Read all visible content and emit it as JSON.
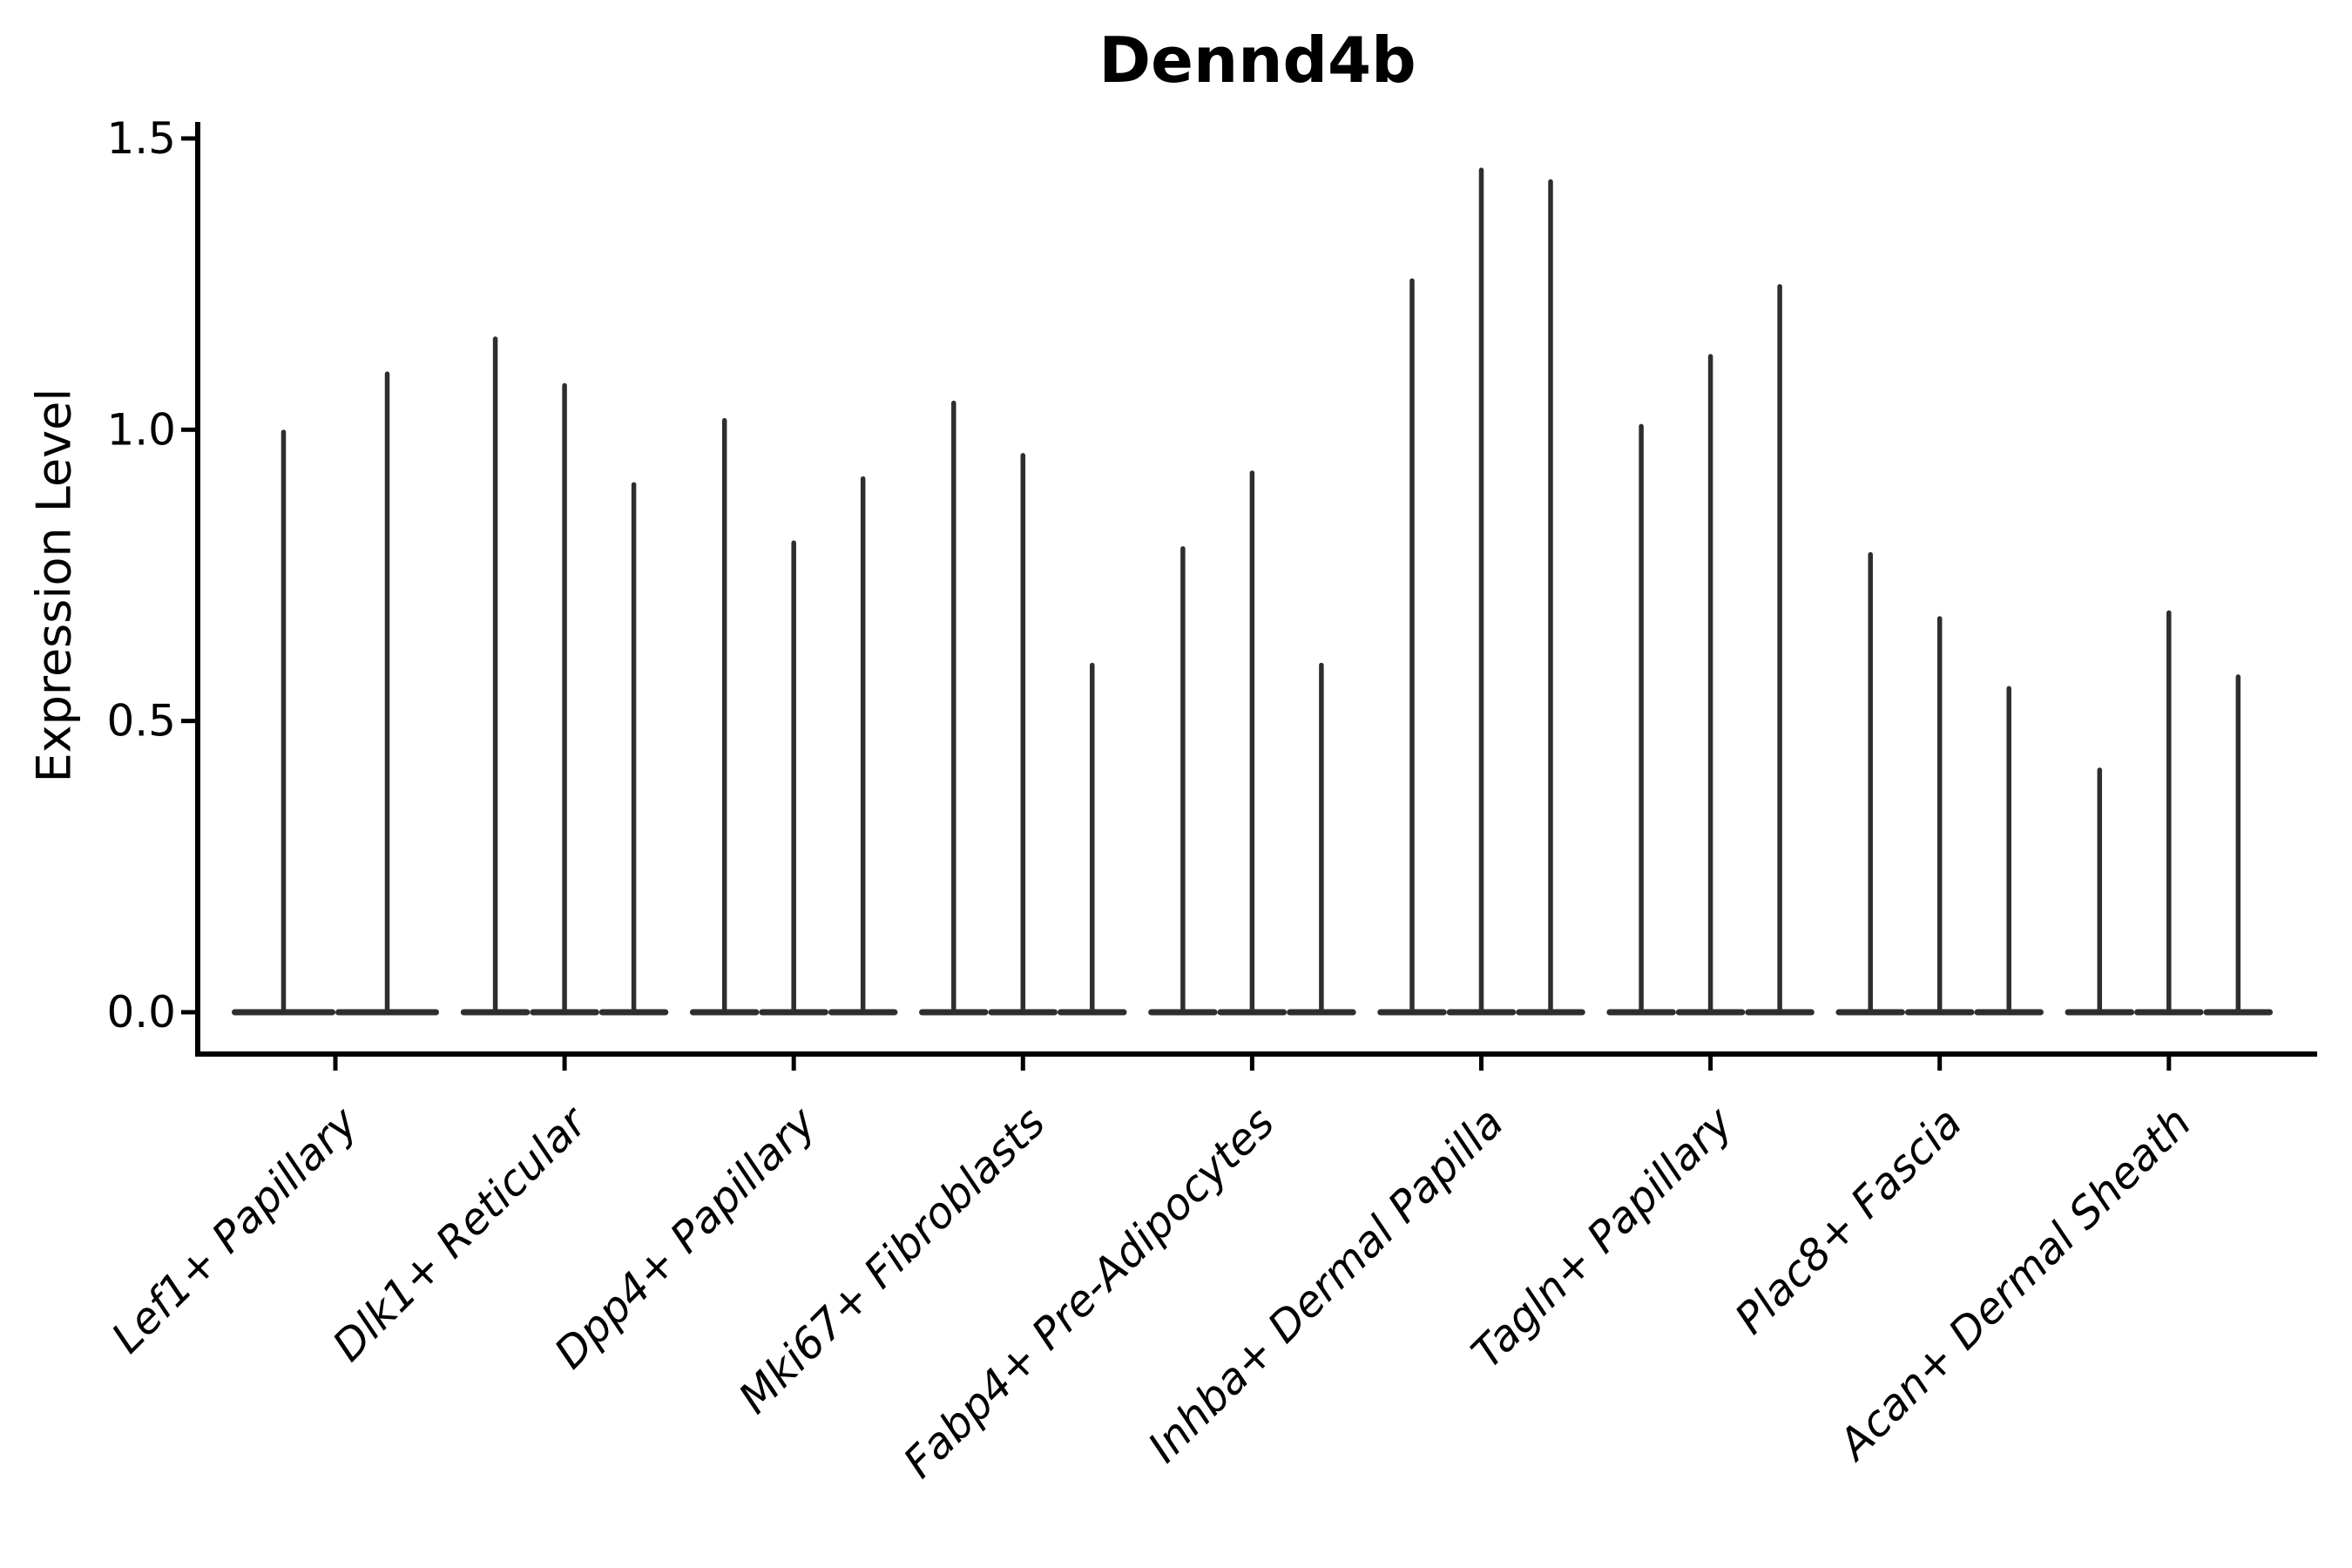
{
  "title": "Dennd4b",
  "axes": {
    "ylabel": "Expression Level",
    "ytick_labels": [
      "0.0",
      "0.5",
      "1.0",
      "1.5"
    ],
    "ytick_values": [
      0.0,
      0.5,
      1.0,
      1.5
    ],
    "ylim": [
      0,
      1.5
    ]
  },
  "colors": {
    "violin": "#2e2e2e",
    "axis": "#000000",
    "text": "#000000",
    "background": "#ffffff"
  },
  "chart_data": {
    "type": "violin",
    "title": "Dennd4b",
    "ylabel": "Expression Level",
    "yticks": [
      0.0,
      0.5,
      1.0,
      1.5
    ],
    "ylim": [
      0,
      1.5
    ],
    "grid": false,
    "legend": "none",
    "description": "Spike-shaped violins (mass concentrated at 0 with thin spike to max expression); each cell-type group contains 2-3 violins",
    "categories": [
      "Lef1+ Papillary",
      "Dlk1+ Reticular",
      "Dpp4+ Papillary",
      "Mki67+ Fibroblasts",
      "Fabp4+ Pre-Adipocytes",
      "Inhba+ Dermal Papilla",
      "Tagln+ Papillary",
      "Plac8+ Fascia",
      "Acan+ Dermal Sheath"
    ],
    "groups": [
      {
        "category": "Lef1+ Papillary",
        "violin_max": [
          1.0,
          1.1
        ]
      },
      {
        "category": "Dlk1+ Reticular",
        "violin_max": [
          1.16,
          1.08,
          0.91
        ]
      },
      {
        "category": "Dpp4+ Papillary",
        "violin_max": [
          1.02,
          0.81,
          0.92
        ]
      },
      {
        "category": "Mki67+ Fibroblasts",
        "violin_max": [
          1.05,
          0.96,
          0.6
        ]
      },
      {
        "category": "Fabp4+ Pre-Adipocytes",
        "violin_max": [
          0.8,
          0.93,
          0.6
        ]
      },
      {
        "category": "Inhba+ Dermal Papilla",
        "violin_max": [
          1.26,
          1.45,
          1.43
        ]
      },
      {
        "category": "Tagln+ Papillary",
        "violin_max": [
          1.01,
          1.13,
          1.25
        ]
      },
      {
        "category": "Plac8+ Fascia",
        "violin_max": [
          0.79,
          0.68,
          0.56
        ]
      },
      {
        "category": "Acan+ Dermal Sheath",
        "violin_max": [
          0.42,
          0.69,
          0.58
        ]
      }
    ],
    "violin_baseline_value": 0.0
  }
}
